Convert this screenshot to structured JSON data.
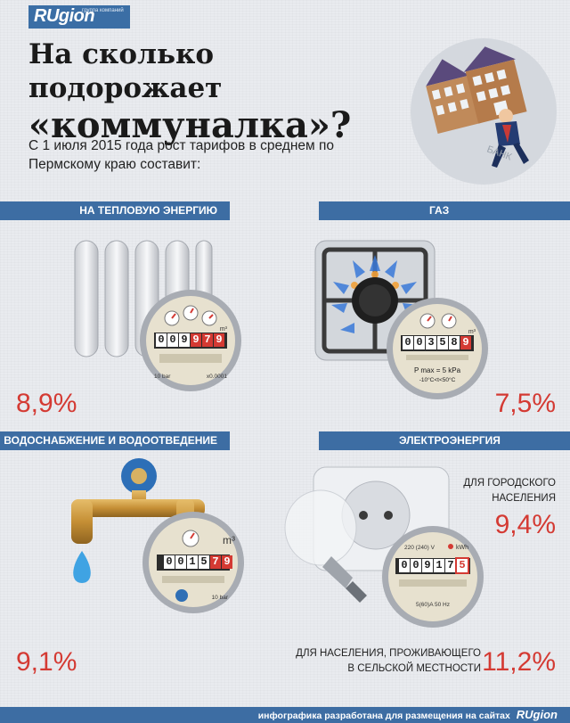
{
  "brand": {
    "name": "RUgion",
    "tagline": "группа компаний"
  },
  "title": {
    "line1": "На сколько подорожает",
    "line2": "«коммуналка»?"
  },
  "subtitle": "С 1 июля 2015 года рост тарифов в среднем по Пермскому краю составит:",
  "sections": {
    "heat": {
      "label": "НА ТЕПЛОВУЮ ЭНЕРГИЮ",
      "percent": "8,9%",
      "meter": {
        "digits_black": [
          "0",
          "0",
          "9"
        ],
        "digits_red": [
          "9",
          "7",
          "9"
        ],
        "unit": "m³",
        "bottom_left": "10 bar",
        "bottom_right": "x0.0001"
      }
    },
    "gas": {
      "label": "ГАЗ",
      "percent": "7,5%",
      "meter": {
        "digits_black": [
          "0",
          "0",
          "3",
          "5",
          "8"
        ],
        "digits_red": [
          "9"
        ],
        "unit": "m³",
        "pmax": "P max = 5 kPa",
        "temp": "-10°C<t<50°C"
      }
    },
    "water": {
      "label": "ВОДОСНАБЖЕНИЕ И ВОДООТВЕДЕНИЕ",
      "percent": "9,1%",
      "meter": {
        "digits_black": [
          "0",
          "0",
          "1",
          "5"
        ],
        "digits_red": [
          "7",
          "9"
        ],
        "unit": "m³",
        "bottom_right": "10 bar"
      }
    },
    "electricity": {
      "label": "ЭЛЕКТРОЭНЕРГИЯ",
      "urban_label": "ДЛЯ ГОРОДСКОГО НАСЕЛЕНИЯ",
      "urban_percent": "9,4%",
      "rural_label": "ДЛЯ НАСЕЛЕНИЯ, ПРОЖИВАЮЩЕГО В СЕЛЬСКОЙ МЕСТНОСТИ",
      "rural_percent": "11,2%",
      "meter": {
        "digits_black": [
          "0",
          "0",
          "9",
          "1",
          "7"
        ],
        "digits_red": [
          "5"
        ],
        "voltage": "220 (240) V",
        "unit": "kWh",
        "current": "5(60)A 50 Hz"
      }
    }
  },
  "footer": {
    "text": "инфографика разработана для размещения на сайтах",
    "brand": "RUgion"
  },
  "colors": {
    "band": "#3d6da3",
    "accent_red": "#d43a33",
    "background": "#e9ebef"
  }
}
